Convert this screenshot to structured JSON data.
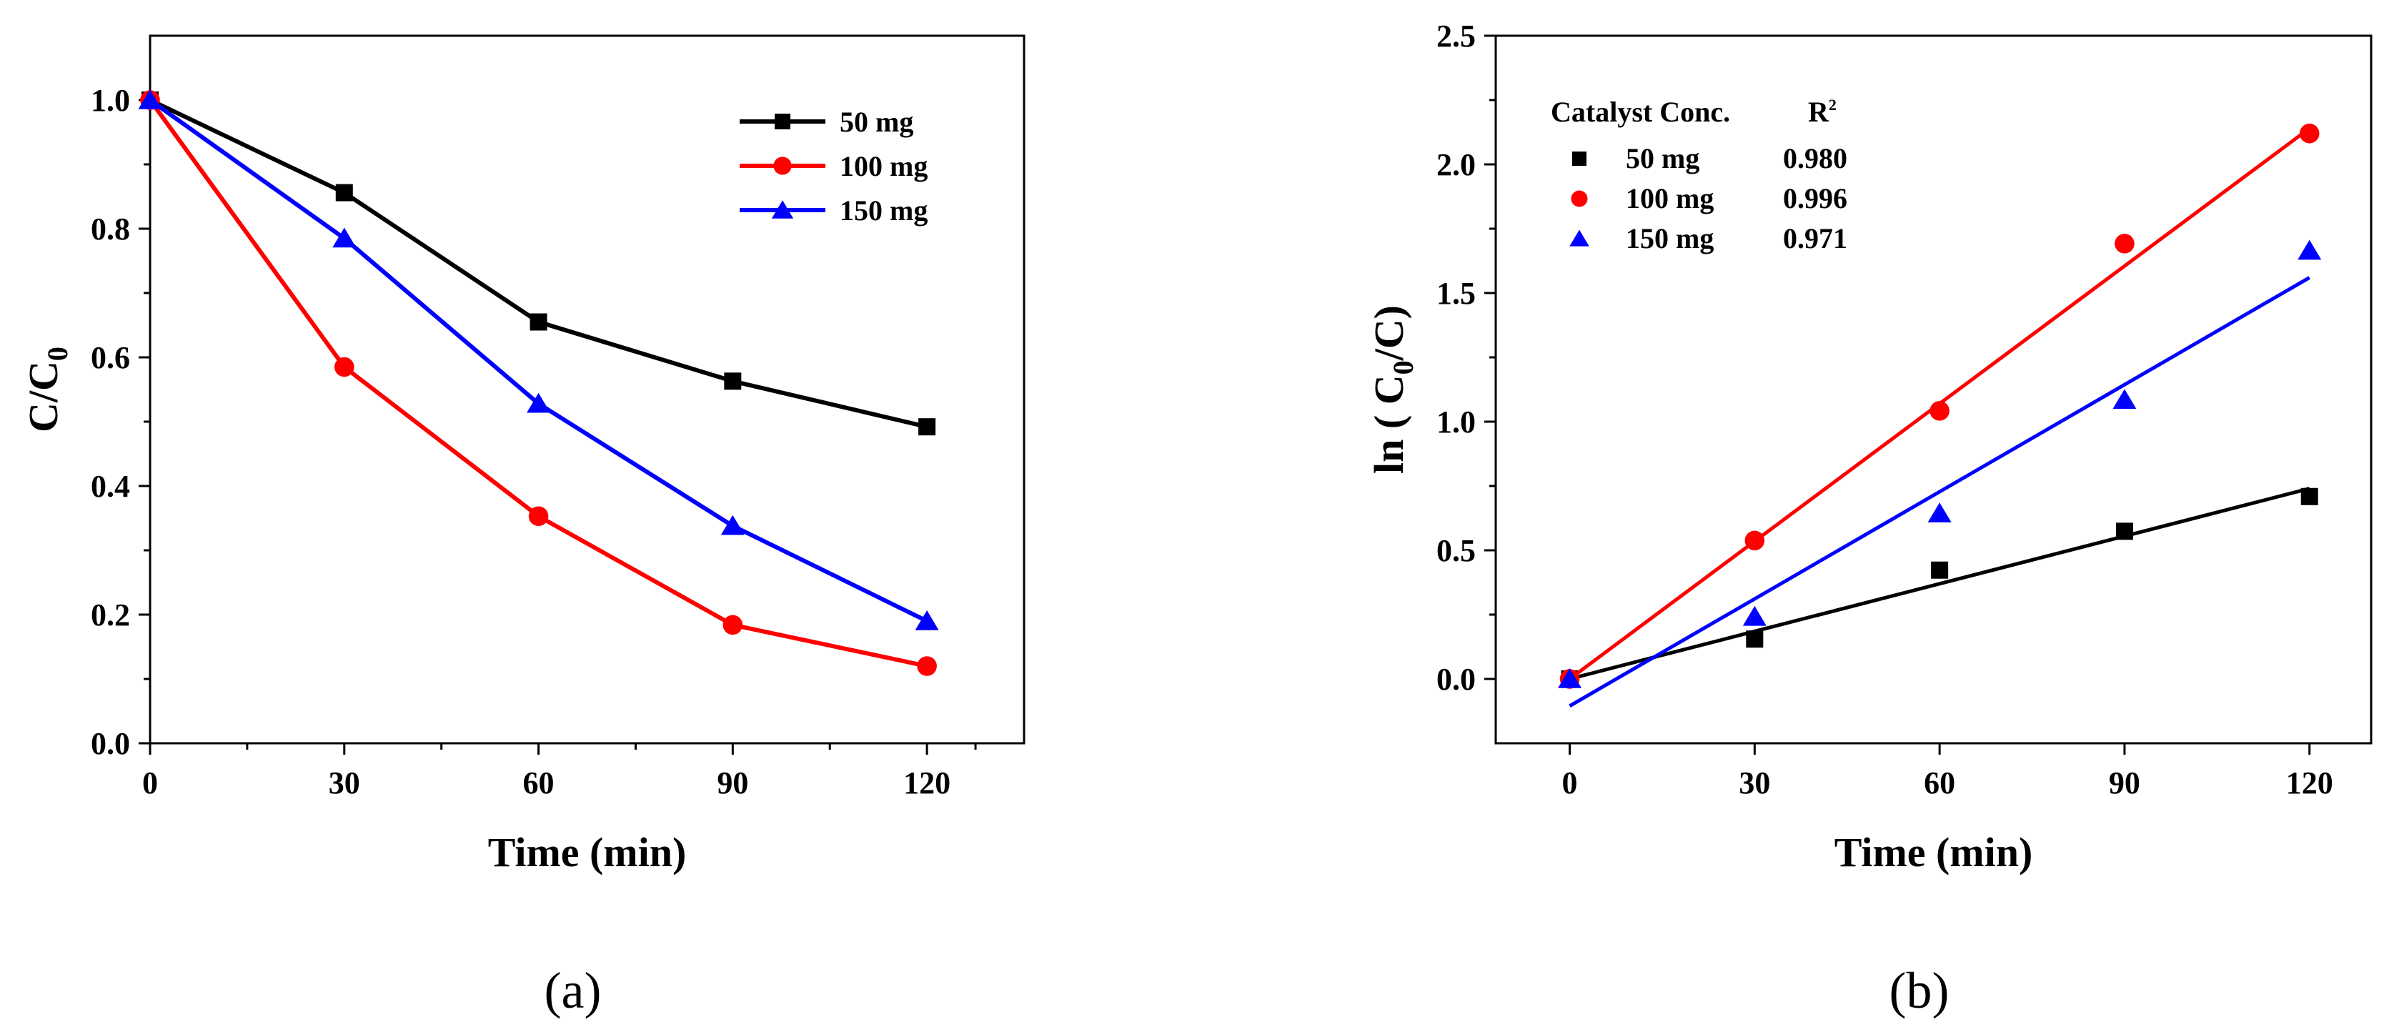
{
  "chart_data": [
    {
      "type": "line",
      "panel_label": "(a)",
      "xlabel": "Time (min)",
      "ylabel": {
        "main": "C/C",
        "sub": "0"
      },
      "xlim": [
        0,
        135
      ],
      "ylim": [
        0,
        1.1
      ],
      "x_ticks": [
        0,
        30,
        60,
        90,
        120
      ],
      "y_ticks": [
        "0.0",
        "0.2",
        "0.4",
        "0.6",
        "0.8",
        "1.0"
      ],
      "x": [
        0,
        30,
        60,
        90,
        120
      ],
      "legend_position": "top-right",
      "series": [
        {
          "name": "50 mg",
          "color": "#000000",
          "marker": "square",
          "values": [
            1.0,
            0.856,
            0.655,
            0.563,
            0.492
          ]
        },
        {
          "name": "100 mg",
          "color": "#ff0000",
          "marker": "circle",
          "values": [
            1.0,
            0.585,
            0.353,
            0.184,
            0.12
          ]
        },
        {
          "name": "150 mg",
          "color": "#0000ff",
          "marker": "triangle",
          "values": [
            1.0,
            0.785,
            0.528,
            0.338,
            0.19
          ]
        }
      ]
    },
    {
      "type": "scatter",
      "panel_label": "(b)",
      "xlabel": "Time (min)",
      "ylabel": {
        "main": "ln ( C",
        "sub": "0",
        "rest": "/C)"
      },
      "xlim": [
        -12,
        130
      ],
      "ylim": [
        -0.25,
        2.5
      ],
      "x_ticks": [
        0,
        30,
        60,
        90,
        120
      ],
      "y_ticks": [
        "0.0",
        "0.5",
        "1.0",
        "1.5",
        "2.0",
        "2.5"
      ],
      "x": [
        0,
        30,
        60,
        90,
        120
      ],
      "legend_position": "top-left",
      "legend_header": {
        "name": "Catalyst Conc.",
        "r2": "R",
        "r2_sup": "2"
      },
      "series": [
        {
          "name": "50 mg",
          "r2": "0.980",
          "color": "#000000",
          "marker": "square",
          "values": [
            0.0,
            0.155,
            0.423,
            0.574,
            0.709
          ],
          "fit": [
            0.0,
            0.74
          ]
        },
        {
          "name": "100 mg",
          "r2": "0.996",
          "color": "#ff0000",
          "marker": "circle",
          "values": [
            0.0,
            0.538,
            1.042,
            1.692,
            2.12
          ],
          "fit": [
            0.0,
            2.14
          ]
        },
        {
          "name": "150 mg",
          "r2": "0.971",
          "color": "#0000ff",
          "marker": "triangle",
          "values": [
            0.0,
            0.242,
            0.644,
            1.085,
            1.665
          ],
          "fit": [
            -0.105,
            1.56
          ]
        }
      ]
    }
  ]
}
